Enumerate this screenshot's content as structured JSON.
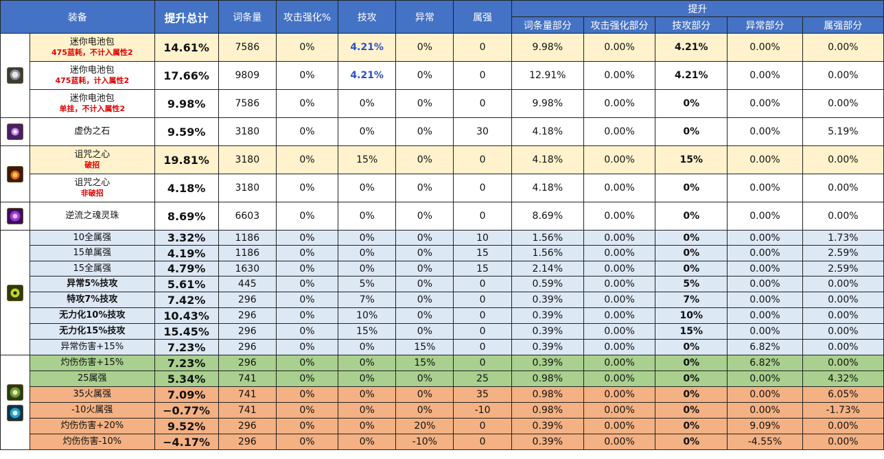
{
  "header": {
    "equipment": "装备",
    "total": "提升总计",
    "affix": "词条量",
    "atk_boost": "攻击强化%",
    "skill_atk": "技攻",
    "status": "异常",
    "element": "属强",
    "boost_group": "提升",
    "affix_part": "词条量部分",
    "atk_part": "攻击强化部分",
    "skill_part": "技攻部分",
    "status_part": "异常部分",
    "element_part": "属强部分"
  },
  "icons": {
    "battery": "battery-pack-icon",
    "stone": "false-stone-icon",
    "heart": "cursed-heart-icon",
    "orb": "reverse-soul-orb-icon",
    "eye": "green-eye-icon",
    "gem1": "golden-green-gem-icon",
    "gem2": "blue-gem-icon"
  },
  "colors": {
    "header_blue": "#4472c4",
    "highlight_yellow": "#fff2cc",
    "light_blue": "#dde8f5",
    "green": "#a9d08e",
    "orange": "#f4b183",
    "red_note": "#e00000",
    "blue_value": "#2d4fc9"
  },
  "rows": [
    {
      "name": "迷你电池包",
      "note": "475蓝耗，不计入属性2",
      "total": "14.61%",
      "affix": "7586",
      "atk": "0%",
      "skill": "4.21%",
      "status": "0%",
      "element": "0",
      "affix_part": "9.98%",
      "atk_part": "0.00%",
      "skill_part": "4.21%",
      "status_part": "0.00%",
      "element_part": "0.00%"
    },
    {
      "name": "迷你电池包",
      "note": "475蓝耗，计入属性2",
      "total": "17.66%",
      "affix": "9809",
      "atk": "0%",
      "skill": "4.21%",
      "status": "0%",
      "element": "0",
      "affix_part": "12.91%",
      "atk_part": "0.00%",
      "skill_part": "4.21%",
      "status_part": "0.00%",
      "element_part": "0.00%"
    },
    {
      "name": "迷你电池包",
      "note": "单挂，不计入属性2",
      "total": "9.98%",
      "affix": "7586",
      "atk": "0%",
      "skill": "0%",
      "status": "0%",
      "element": "0",
      "affix_part": "9.98%",
      "atk_part": "0.00%",
      "skill_part": "0%",
      "status_part": "0.00%",
      "element_part": "0.00%"
    },
    {
      "name": "虚伪之石",
      "note": "",
      "total": "9.59%",
      "affix": "3180",
      "atk": "0%",
      "skill": "0%",
      "status": "0%",
      "element": "30",
      "affix_part": "4.18%",
      "atk_part": "0.00%",
      "skill_part": "0%",
      "status_part": "0.00%",
      "element_part": "5.19%"
    },
    {
      "name": "诅咒之心",
      "note": "破招",
      "total": "19.81%",
      "affix": "3180",
      "atk": "0%",
      "skill": "15%",
      "status": "0%",
      "element": "0",
      "affix_part": "4.18%",
      "atk_part": "0.00%",
      "skill_part": "15%",
      "status_part": "0.00%",
      "element_part": "0.00%"
    },
    {
      "name": "诅咒之心",
      "note": "非破招",
      "total": "4.18%",
      "affix": "3180",
      "atk": "0%",
      "skill": "0%",
      "status": "0%",
      "element": "0",
      "affix_part": "4.18%",
      "atk_part": "0.00%",
      "skill_part": "0%",
      "status_part": "0.00%",
      "element_part": "0.00%"
    },
    {
      "name": "逆流之魂灵珠",
      "note": "",
      "total": "8.69%",
      "affix": "6603",
      "atk": "0%",
      "skill": "0%",
      "status": "0%",
      "element": "0",
      "affix_part": "8.69%",
      "atk_part": "0.00%",
      "skill_part": "0%",
      "status_part": "0.00%",
      "element_part": "0.00%"
    },
    {
      "name": "10全属强",
      "note": "",
      "total": "3.32%",
      "affix": "1186",
      "atk": "0%",
      "skill": "0%",
      "status": "0%",
      "element": "10",
      "affix_part": "1.56%",
      "atk_part": "0.00%",
      "skill_part": "0%",
      "status_part": "0.00%",
      "element_part": "1.73%"
    },
    {
      "name": "15单属强",
      "note": "",
      "total": "4.19%",
      "affix": "1186",
      "atk": "0%",
      "skill": "0%",
      "status": "0%",
      "element": "15",
      "affix_part": "1.56%",
      "atk_part": "0.00%",
      "skill_part": "0%",
      "status_part": "0.00%",
      "element_part": "2.59%"
    },
    {
      "name": "15全属强",
      "note": "",
      "total": "4.79%",
      "affix": "1630",
      "atk": "0%",
      "skill": "0%",
      "status": "0%",
      "element": "15",
      "affix_part": "2.14%",
      "atk_part": "0.00%",
      "skill_part": "0%",
      "status_part": "0.00%",
      "element_part": "2.59%"
    },
    {
      "name": "异常5%技攻",
      "note": "",
      "total": "5.61%",
      "affix": "445",
      "atk": "0%",
      "skill": "5%",
      "status": "0%",
      "element": "0",
      "affix_part": "0.59%",
      "atk_part": "0.00%",
      "skill_part": "5%",
      "status_part": "0.00%",
      "element_part": "0.00%"
    },
    {
      "name": "特攻7%技攻",
      "note": "",
      "total": "7.42%",
      "affix": "296",
      "atk": "0%",
      "skill": "7%",
      "status": "0%",
      "element": "0",
      "affix_part": "0.39%",
      "atk_part": "0.00%",
      "skill_part": "7%",
      "status_part": "0.00%",
      "element_part": "0.00%"
    },
    {
      "name": "无力化10%技攻",
      "note": "",
      "total": "10.43%",
      "affix": "296",
      "atk": "0%",
      "skill": "10%",
      "status": "0%",
      "element": "0",
      "affix_part": "0.39%",
      "atk_part": "0.00%",
      "skill_part": "10%",
      "status_part": "0.00%",
      "element_part": "0.00%"
    },
    {
      "name": "无力化15%技攻",
      "note": "",
      "total": "15.45%",
      "affix": "296",
      "atk": "0%",
      "skill": "15%",
      "status": "0%",
      "element": "0",
      "affix_part": "0.39%",
      "atk_part": "0.00%",
      "skill_part": "15%",
      "status_part": "0.00%",
      "element_part": "0.00%"
    },
    {
      "name": "异常伤害+15%",
      "note": "",
      "total": "7.23%",
      "affix": "296",
      "atk": "0%",
      "skill": "0%",
      "status": "15%",
      "element": "0",
      "affix_part": "0.39%",
      "atk_part": "0.00%",
      "skill_part": "0%",
      "status_part": "6.82%",
      "element_part": "0.00%"
    },
    {
      "name": "灼伤伤害+15%",
      "note": "",
      "total": "7.23%",
      "affix": "296",
      "atk": "0%",
      "skill": "0%",
      "status": "15%",
      "element": "0",
      "affix_part": "0.39%",
      "atk_part": "0.00%",
      "skill_part": "0%",
      "status_part": "6.82%",
      "element_part": "0.00%"
    },
    {
      "name": "25属强",
      "note": "",
      "total": "5.34%",
      "affix": "741",
      "atk": "0%",
      "skill": "0%",
      "status": "0%",
      "element": "25",
      "affix_part": "0.98%",
      "atk_part": "0.00%",
      "skill_part": "0%",
      "status_part": "0.00%",
      "element_part": "4.32%"
    },
    {
      "name": "35火属强",
      "note": "",
      "total": "7.09%",
      "affix": "741",
      "atk": "0%",
      "skill": "0%",
      "status": "0%",
      "element": "35",
      "affix_part": "0.98%",
      "atk_part": "0.00%",
      "skill_part": "0%",
      "status_part": "0.00%",
      "element_part": "6.05%"
    },
    {
      "name": "-10火属强",
      "note": "",
      "total": "−0.77%",
      "affix": "741",
      "atk": "0%",
      "skill": "0%",
      "status": "0%",
      "element": "-10",
      "affix_part": "0.98%",
      "atk_part": "0.00%",
      "skill_part": "0%",
      "status_part": "0.00%",
      "element_part": "-1.73%"
    },
    {
      "name": "灼伤伤害+20%",
      "note": "",
      "total": "9.52%",
      "affix": "296",
      "atk": "0%",
      "skill": "0%",
      "status": "20%",
      "element": "0",
      "affix_part": "0.39%",
      "atk_part": "0.00%",
      "skill_part": "0%",
      "status_part": "9.09%",
      "element_part": "0.00%"
    },
    {
      "name": "灼伤伤害-10%",
      "note": "",
      "total": "−4.17%",
      "affix": "296",
      "atk": "0%",
      "skill": "0%",
      "status": "-10%",
      "element": "0",
      "affix_part": "0.39%",
      "atk_part": "0.00%",
      "skill_part": "0%",
      "status_part": "-4.55%",
      "element_part": "0.00%"
    }
  ]
}
